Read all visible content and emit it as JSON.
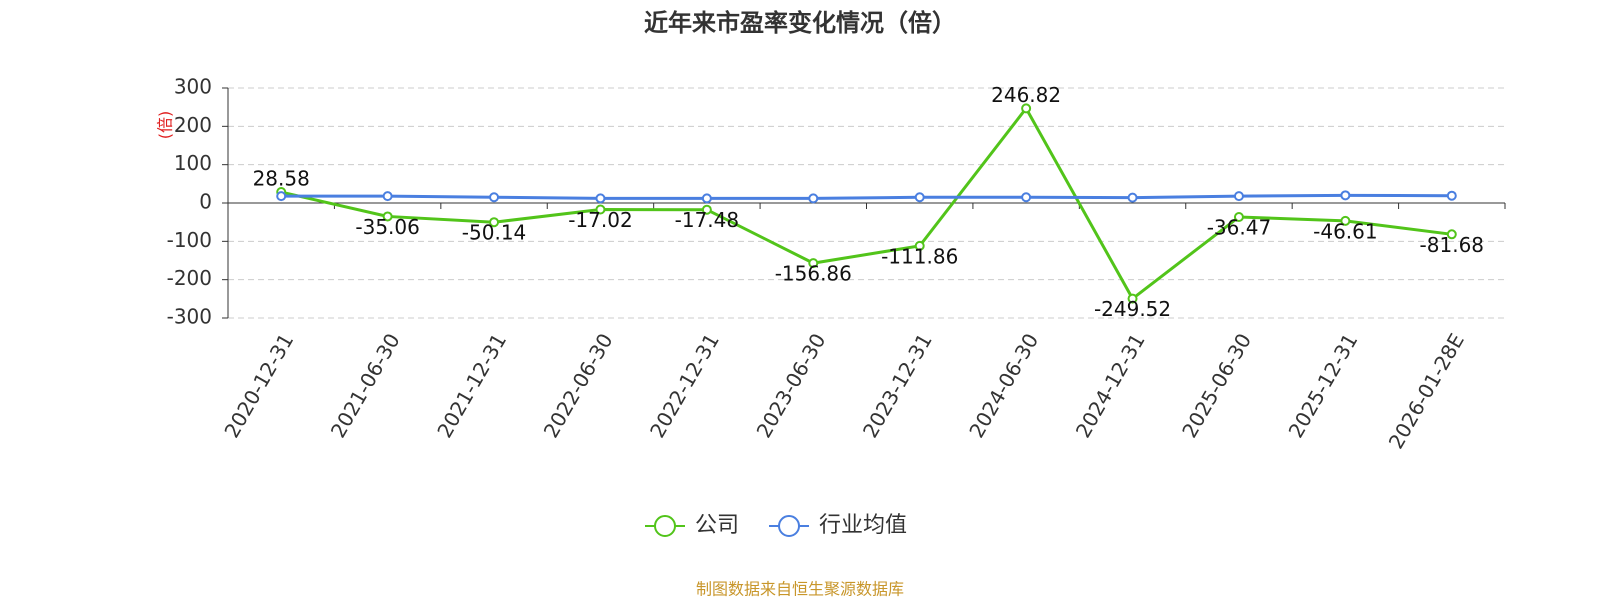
{
  "chart_data": {
    "type": "line",
    "title": "近年来市盈率变化情况（倍）",
    "y_label": "(倍)",
    "source": "制图数据来自恒生聚源数据库",
    "categories": [
      "2020-12-31",
      "2021-06-30",
      "2021-12-31",
      "2022-06-30",
      "2022-12-31",
      "2023-06-30",
      "2023-12-31",
      "2024-06-30",
      "2024-12-31",
      "2025-06-30",
      "2025-12-31",
      "2026-01-28E"
    ],
    "series": [
      {
        "name": "公司",
        "color": "#52c41a",
        "show_labels": true,
        "values": [
          28.58,
          -35.06,
          -50.14,
          -17.02,
          -17.48,
          -156.86,
          -111.86,
          246.82,
          -249.52,
          -36.47,
          -46.61,
          -81.68
        ]
      },
      {
        "name": "行业均值",
        "color": "#4a7fe0",
        "show_labels": false,
        "values": [
          18,
          18,
          15,
          12,
          12,
          12,
          15,
          15,
          14,
          18,
          20,
          19
        ]
      }
    ],
    "ylim": [
      -300,
      300
    ],
    "yticks": [
      -300,
      -200,
      -100,
      0,
      100,
      200,
      300
    ],
    "grid": true
  }
}
